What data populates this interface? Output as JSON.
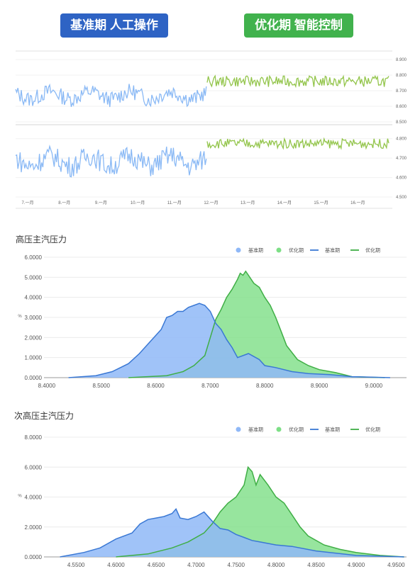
{
  "header": {
    "baseline_label": "基准期  人工操作",
    "optimized_label": "优化期  智能控制",
    "baseline_color": "#2e63c4",
    "optimized_color": "#41b24d"
  },
  "colors": {
    "baseline_fill": "#8fb8f7",
    "baseline_line": "#3a78d4",
    "optimized_fill": "#7ddf86",
    "optimized_line": "#3fae45",
    "series_baseline": "#8ab9f5",
    "series_optimized": "#93c54b"
  },
  "chart_data": [
    {
      "type": "line",
      "x_ticks": [
        "7.一月",
        "8.一月",
        "9.一月",
        "10.一月",
        "11.一月",
        "12.一月",
        "13.一月",
        "14.一月",
        "15.一月",
        "16.一月"
      ],
      "panels": [
        {
          "y_ticks": [
            "8.900",
            "8.800",
            "8.700",
            "8.600",
            "8.500"
          ],
          "ylim": [
            8.5,
            8.9
          ],
          "baseline_mean": 8.67,
          "baseline_amp": 0.05,
          "optimized_mean": 8.76,
          "optimized_amp": 0.035,
          "series": [
            {
              "name": "基准期"
            },
            {
              "name": "优化期"
            }
          ]
        },
        {
          "y_ticks": [
            "4.800",
            "4.700",
            "4.600",
            "4.500"
          ],
          "ylim": [
            4.5,
            4.85
          ],
          "baseline_mean": 4.685,
          "baseline_amp": 0.055,
          "optimized_mean": 4.775,
          "optimized_amp": 0.025,
          "series": [
            {
              "name": "基准期"
            },
            {
              "name": "优化期"
            }
          ]
        }
      ]
    },
    {
      "type": "area",
      "title": "高压主汽压力",
      "ylabel": "%",
      "legend": [
        "基准期",
        "优化期",
        "基准期",
        "优化期"
      ],
      "legend_position": "top-right",
      "xlim": [
        8.395,
        9.06
      ],
      "ylim": [
        0,
        6
      ],
      "x_ticks": [
        "8.4000",
        "8.5000",
        "8.6000",
        "8.7000",
        "8.8000",
        "8.9000",
        "9.0000"
      ],
      "y_ticks": [
        "6.0000",
        "5.0000",
        "4.0000",
        "3.0000",
        "2.0000",
        "1.0000",
        "0.0000"
      ],
      "series": [
        {
          "name": "基准期",
          "x": [
            8.44,
            8.49,
            8.52,
            8.55,
            8.57,
            8.59,
            8.61,
            8.62,
            8.63,
            8.64,
            8.65,
            8.66,
            8.67,
            8.68,
            8.69,
            8.7,
            8.71,
            8.72,
            8.73,
            8.74,
            8.75,
            8.77,
            8.79,
            8.8,
            8.82,
            8.85,
            8.88,
            8.92,
            8.96,
            9.03
          ],
          "y": [
            0.0,
            0.1,
            0.3,
            0.7,
            1.2,
            1.8,
            2.4,
            3.0,
            3.1,
            3.3,
            3.3,
            3.5,
            3.6,
            3.7,
            3.6,
            3.3,
            2.7,
            2.4,
            1.9,
            1.5,
            1.0,
            1.2,
            0.9,
            0.6,
            0.5,
            0.3,
            0.2,
            0.15,
            0.05,
            0.0
          ]
        },
        {
          "name": "优化期",
          "x": [
            8.55,
            8.62,
            8.65,
            8.67,
            8.69,
            8.7,
            8.71,
            8.72,
            8.73,
            8.74,
            8.75,
            8.755,
            8.76,
            8.765,
            8.77,
            8.78,
            8.79,
            8.8,
            8.81,
            8.82,
            8.83,
            8.84,
            8.86,
            8.88,
            8.9,
            8.93,
            8.96,
            9.02
          ],
          "y": [
            0.0,
            0.1,
            0.3,
            0.6,
            1.1,
            2.0,
            2.9,
            3.4,
            4.0,
            4.4,
            4.9,
            5.2,
            5.1,
            5.3,
            5.1,
            4.7,
            4.5,
            4.0,
            3.6,
            3.0,
            2.3,
            1.6,
            0.9,
            0.6,
            0.4,
            0.25,
            0.05,
            0.0
          ]
        }
      ]
    },
    {
      "type": "area",
      "title": "次高压主汽压力",
      "ylabel": "%",
      "legend": [
        "基准期",
        "优化期",
        "基准期",
        "优化期"
      ],
      "legend_position": "top-right",
      "xlim": [
        4.51,
        4.963
      ],
      "ylim": [
        0,
        8
      ],
      "x_ticks": [
        "4.5500",
        "4.6000",
        "4.6500",
        "4.7000",
        "4.7500",
        "4.8000",
        "4.8500",
        "4.9000",
        "4.9500"
      ],
      "y_ticks": [
        "8.0000",
        "6.0000",
        "4.0000",
        "2.0000",
        "0.0000"
      ],
      "series": [
        {
          "name": "基准期",
          "x": [
            4.53,
            4.56,
            4.58,
            4.6,
            4.62,
            4.63,
            4.64,
            4.65,
            4.66,
            4.67,
            4.675,
            4.68,
            4.69,
            4.7,
            4.71,
            4.72,
            4.73,
            4.74,
            4.75,
            4.76,
            4.77,
            4.78,
            4.79,
            4.8,
            4.82,
            4.85,
            4.9,
            4.96
          ],
          "y": [
            0.0,
            0.3,
            0.6,
            1.2,
            1.6,
            2.2,
            2.5,
            2.6,
            2.7,
            2.9,
            3.2,
            2.6,
            2.5,
            2.7,
            3.0,
            2.4,
            1.9,
            1.8,
            1.5,
            1.3,
            1.1,
            1.0,
            0.9,
            0.8,
            0.7,
            0.4,
            0.1,
            0.0
          ]
        },
        {
          "name": "优化期",
          "x": [
            4.6,
            4.64,
            4.67,
            4.69,
            4.71,
            4.72,
            4.73,
            4.74,
            4.75,
            4.76,
            4.765,
            4.77,
            4.775,
            4.78,
            4.79,
            4.8,
            4.81,
            4.82,
            4.83,
            4.84,
            4.86,
            4.88,
            4.9,
            4.93,
            4.96
          ],
          "y": [
            0.0,
            0.2,
            0.6,
            1.0,
            1.6,
            2.2,
            3.0,
            3.6,
            4.0,
            4.8,
            6.0,
            5.7,
            4.8,
            5.5,
            4.8,
            4.0,
            3.6,
            2.8,
            2.0,
            1.4,
            0.8,
            0.5,
            0.3,
            0.1,
            0.0
          ]
        }
      ]
    }
  ]
}
